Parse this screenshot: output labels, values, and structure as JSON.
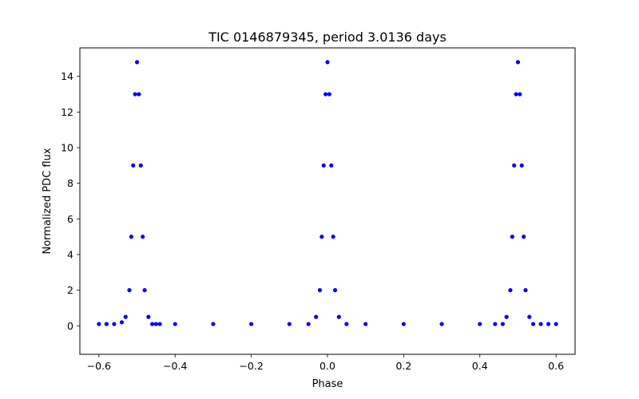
{
  "chart_data": {
    "type": "scatter",
    "title": "TIC 0146879345, period 3.0136 days",
    "xlabel": "Phase",
    "ylabel": "Normalized PDC flux",
    "xlim": [
      -0.65,
      0.65
    ],
    "ylim": [
      -1.6,
      15.6
    ],
    "xticks": [
      -0.6,
      -0.4,
      -0.2,
      0.0,
      0.2,
      0.4,
      0.6
    ],
    "xtick_labels": [
      "−0.6",
      "−0.4",
      "−0.2",
      "0.0",
      "0.2",
      "0.4",
      "0.6"
    ],
    "yticks": [
      0,
      2,
      4,
      6,
      8,
      10,
      12,
      14
    ],
    "ytick_labels": [
      "0",
      "2",
      "4",
      "6",
      "8",
      "10",
      "12",
      "14"
    ],
    "grid": false,
    "legend": "none",
    "marker_color": "#0000ff",
    "series": [
      {
        "x": [
          -0.6,
          -0.58,
          -0.56,
          -0.54,
          -0.53,
          -0.52,
          -0.515,
          -0.51,
          -0.505,
          -0.5,
          -0.495,
          -0.49,
          -0.485,
          -0.48,
          -0.47,
          -0.46,
          -0.45,
          -0.44,
          -0.4,
          -0.3,
          -0.2,
          -0.1,
          -0.05,
          -0.03,
          -0.02,
          -0.015,
          -0.01,
          -0.005,
          0.0,
          0.005,
          0.01,
          0.015,
          0.02,
          0.03,
          0.05,
          0.1,
          0.2,
          0.3,
          0.4,
          0.44,
          0.46,
          0.47,
          0.48,
          0.485,
          0.49,
          0.495,
          0.5,
          0.505,
          0.51,
          0.515,
          0.52,
          0.53,
          0.54,
          0.56,
          0.58,
          0.6
        ],
        "y": [
          0.1,
          0.1,
          0.1,
          0.2,
          0.5,
          2.0,
          5.0,
          9.0,
          13.0,
          14.8,
          13.0,
          9.0,
          5.0,
          2.0,
          0.5,
          0.1,
          0.1,
          0.1,
          0.1,
          0.1,
          0.1,
          0.1,
          0.1,
          0.5,
          2.0,
          5.0,
          9.0,
          13.0,
          14.8,
          13.0,
          9.0,
          5.0,
          2.0,
          0.5,
          0.1,
          0.1,
          0.1,
          0.1,
          0.1,
          0.1,
          0.1,
          0.5,
          2.0,
          5.0,
          9.0,
          13.0,
          14.8,
          13.0,
          9.0,
          5.0,
          2.0,
          0.5,
          0.1,
          0.1,
          0.1,
          0.1
        ]
      }
    ]
  }
}
